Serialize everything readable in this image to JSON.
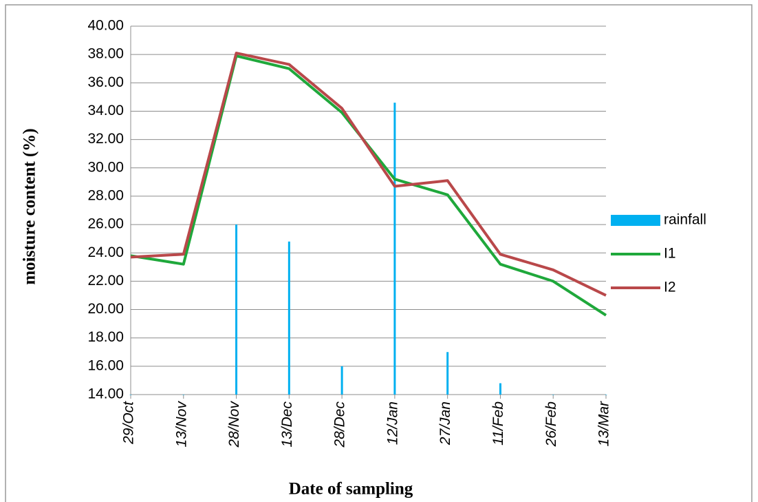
{
  "chart_data": {
    "type": "bar_line",
    "x_label": "Date of sampling",
    "y_label": "moisture content  (%)",
    "categories": [
      "29/Oct",
      "13/Nov",
      "28/Nov",
      "13/Dec",
      "28/Dec",
      "12/Jan",
      "27/Jan",
      "11/Feb",
      "26/Feb",
      "13/Mar"
    ],
    "series": [
      {
        "name": "rainfall",
        "kind": "bar",
        "color": "#00b0f0",
        "values": [
          14.0,
          14.0,
          26.0,
          24.8,
          16.0,
          34.6,
          17.0,
          14.8,
          14.0,
          14.0
        ]
      },
      {
        "name": "I1",
        "kind": "line",
        "color": "#1fa83b",
        "values": [
          23.8,
          23.2,
          37.9,
          37.0,
          33.9,
          29.2,
          28.1,
          23.2,
          22.0,
          19.6
        ]
      },
      {
        "name": "I2",
        "kind": "line",
        "color": "#b9484a",
        "values": [
          23.7,
          23.9,
          38.1,
          37.3,
          34.2,
          28.7,
          29.1,
          23.9,
          22.8,
          21.0
        ]
      }
    ],
    "ylim": [
      14,
      40
    ],
    "yticks": [
      {
        "value": 14,
        "label": "14.00"
      },
      {
        "value": 16,
        "label": "16.00"
      },
      {
        "value": 18,
        "label": "18.00"
      },
      {
        "value": 20,
        "label": "20.00"
      },
      {
        "value": 22,
        "label": "22.00"
      },
      {
        "value": 24,
        "label": "24.00"
      },
      {
        "value": 26,
        "label": "26.00"
      },
      {
        "value": 28,
        "label": "28.00"
      },
      {
        "value": 30,
        "label": "30.00"
      },
      {
        "value": 32,
        "label": "32.00"
      },
      {
        "value": 34,
        "label": "34.00"
      },
      {
        "value": 36,
        "label": "36.00"
      },
      {
        "value": 38,
        "label": "38.00"
      },
      {
        "value": 40,
        "label": "40.00"
      }
    ],
    "grid": true,
    "legend": "right"
  }
}
